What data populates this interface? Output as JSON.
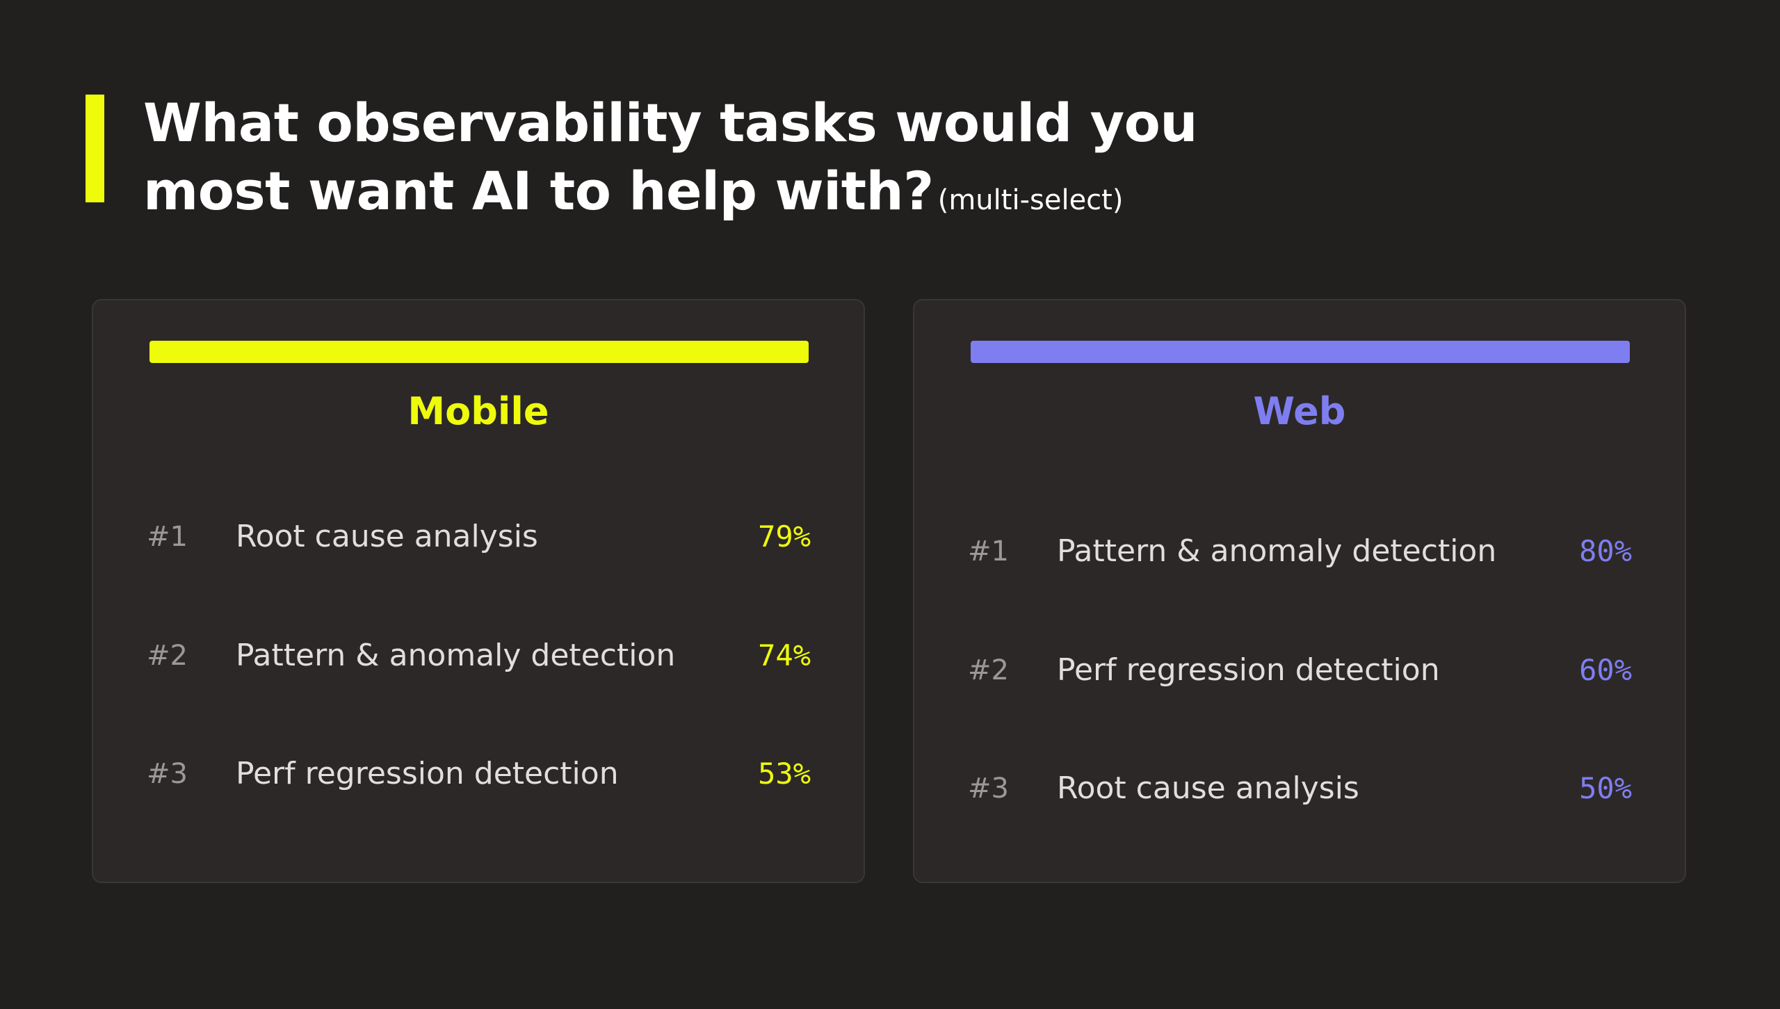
{
  "colors": {
    "background": "#221f1f",
    "card": "#2c2828",
    "accent_yellow": "#eefc0c",
    "accent_purple": "#7f7ef0",
    "title_text": "#ffffff"
  },
  "header": {
    "title_line1": "What observability tasks would you",
    "title_line2": "most want AI to help with?",
    "note": "(multi-select)"
  },
  "panels": [
    {
      "name": "Mobile",
      "color": "#eefc0c",
      "items": [
        {
          "rank": "#1",
          "task": "Root cause analysis",
          "percent": "79%"
        },
        {
          "rank": "#2",
          "task": "Pattern & anomaly detection",
          "percent": "74%"
        },
        {
          "rank": "#3",
          "task": "Perf regression detection",
          "percent": "53%"
        }
      ]
    },
    {
      "name": "Web",
      "color": "#7f7ef0",
      "items": [
        {
          "rank": "#1",
          "task": "Pattern & anomaly detection",
          "percent": "80%"
        },
        {
          "rank": "#2",
          "task": "Perf regression detection",
          "percent": "60%"
        },
        {
          "rank": "#3",
          "task": "Root cause analysis",
          "percent": "50%"
        }
      ]
    }
  ]
}
